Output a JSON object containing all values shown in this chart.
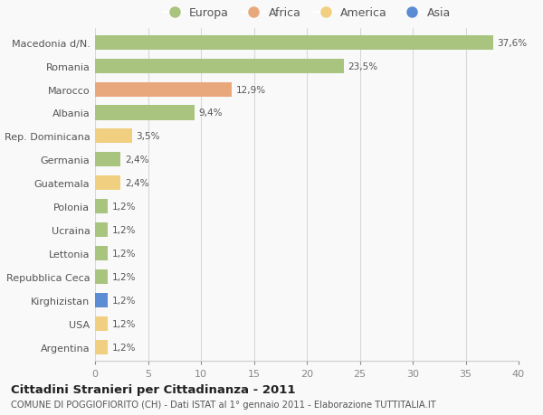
{
  "categories": [
    "Macedonia d/N.",
    "Romania",
    "Marocco",
    "Albania",
    "Rep. Dominicana",
    "Germania",
    "Guatemala",
    "Polonia",
    "Ucraina",
    "Lettonia",
    "Repubblica Ceca",
    "Kirghizistan",
    "USA",
    "Argentina"
  ],
  "values": [
    37.6,
    23.5,
    12.9,
    9.4,
    3.5,
    2.4,
    2.4,
    1.2,
    1.2,
    1.2,
    1.2,
    1.2,
    1.2,
    1.2
  ],
  "labels": [
    "37,6%",
    "23,5%",
    "12,9%",
    "9,4%",
    "3,5%",
    "2,4%",
    "2,4%",
    "1,2%",
    "1,2%",
    "1,2%",
    "1,2%",
    "1,2%",
    "1,2%",
    "1,2%"
  ],
  "colors": [
    "#a8c47e",
    "#a8c47e",
    "#e8a87c",
    "#a8c47e",
    "#f0d080",
    "#a8c47e",
    "#f0d080",
    "#a8c47e",
    "#a8c47e",
    "#a8c47e",
    "#a8c47e",
    "#5b8cd4",
    "#f0d080",
    "#f0d080"
  ],
  "legend_labels": [
    "Europa",
    "Africa",
    "America",
    "Asia"
  ],
  "legend_colors": [
    "#a8c47e",
    "#e8a87c",
    "#f0d080",
    "#5b8cd4"
  ],
  "xlim": [
    0,
    40
  ],
  "xticks": [
    0,
    5,
    10,
    15,
    20,
    25,
    30,
    35,
    40
  ],
  "title": "Cittadini Stranieri per Cittadinanza - 2011",
  "subtitle": "COMUNE DI POGGIOFIORITO (CH) - Dati ISTAT al 1° gennaio 2011 - Elaborazione TUTTITALIA.IT",
  "background_color": "#f9f9f9",
  "grid_color": "#d8d8d8",
  "bar_height": 0.62
}
